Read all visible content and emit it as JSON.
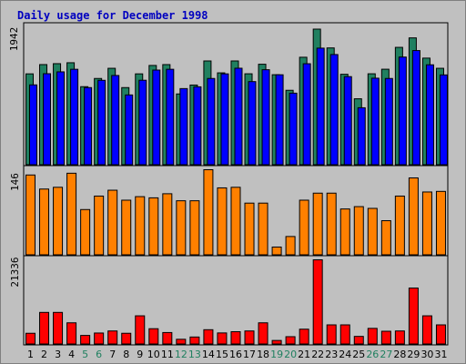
{
  "chart_data": {
    "type": "bar",
    "title": "Daily usage for December 1998",
    "categories": [
      "1",
      "2",
      "3",
      "4",
      "5",
      "6",
      "7",
      "8",
      "9",
      "10",
      "11",
      "12",
      "13",
      "14",
      "15",
      "16",
      "17",
      "18",
      "19",
      "20",
      "21",
      "22",
      "23",
      "24",
      "25",
      "26",
      "27",
      "28",
      "29",
      "30",
      "31"
    ],
    "weekend_days": [
      "5",
      "6",
      "12",
      "13",
      "19",
      "20",
      "26",
      "27"
    ],
    "panels": [
      {
        "label": "1942",
        "ymax": 1942,
        "series": [
          {
            "color": "#208060",
            "values": [
              1282,
              1412,
              1425,
              1438,
              1102,
              1217,
              1360,
              1089,
              1282,
              1400,
              1412,
              1000,
              1125,
              1463,
              1296,
              1463,
              1283,
              1417,
              1270,
              1051,
              1515,
              1910,
              1646,
              1276,
              932,
              1283,
              1347,
              1654,
              1787,
              1503,
              1360
            ]
          },
          {
            "color": "#0000ff",
            "values": [
              1127,
              1284,
              1310,
              1346,
              1089,
              1191,
              1259,
              986,
              1192,
              1335,
              1346,
              1075,
              1100,
              1217,
              1282,
              1361,
              1173,
              1340,
              1269,
              1011,
              1424,
              1643,
              1553,
              1243,
              806,
              1221,
              1217,
              1518,
              1609,
              1409,
              1267
            ]
          }
        ]
      },
      {
        "label": "146",
        "ymax": 146,
        "series": [
          {
            "color": "#ff8000",
            "values": [
              137,
              113,
              116,
              140,
              78,
              101,
              111,
              94,
              100,
              98,
              105,
              93,
              93,
              146,
              115,
              116,
              89,
              89,
              14,
              32,
              94,
              106,
              106,
              79,
              83,
              80,
              59,
              101,
              132,
              108,
              109
            ]
          }
        ]
      },
      {
        "label": "21336",
        "ymax": 21336,
        "series": [
          {
            "color": "#ff0000",
            "values": [
              2813,
              8075,
              8075,
              5451,
              2270,
              2877,
              3398,
              2813,
              7214,
              3964,
              3000,
              1300,
              1870,
              3714,
              2900,
              3210,
              3398,
              5451,
              1002,
              1955,
              3846,
              21336,
              4932,
              4932,
              2026,
              4050,
              3325,
              3398,
              14218,
              7214,
              4932
            ]
          }
        ]
      }
    ]
  }
}
